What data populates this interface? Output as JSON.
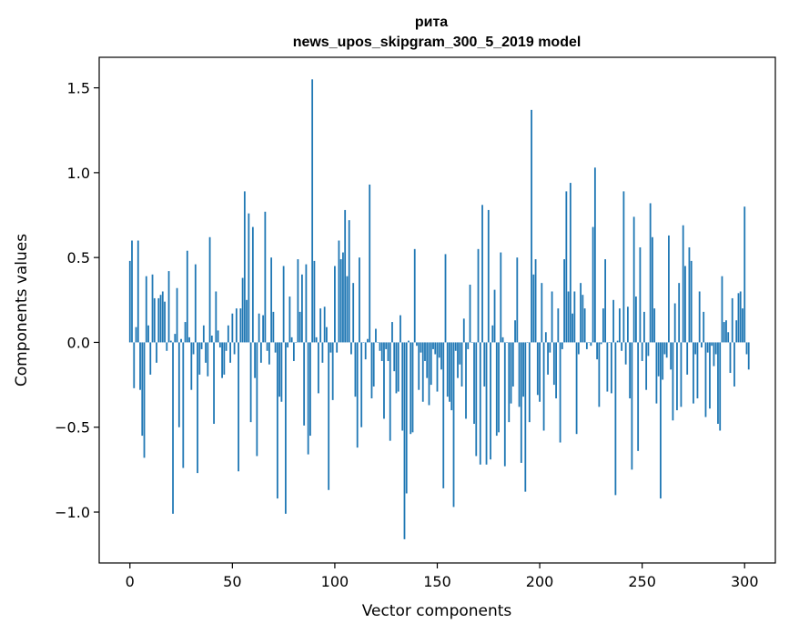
{
  "chart_data": {
    "type": "bar",
    "title_line1": "рита",
    "title_line2": "news_upos_skipgram_300_5_2019 model",
    "xlabel": "Vector components",
    "ylabel": "Components values",
    "xlim": [
      -15,
      315
    ],
    "ylim": [
      -1.3,
      1.68
    ],
    "xticks": [
      0,
      50,
      100,
      150,
      200,
      250,
      300
    ],
    "yticks": [
      1.5,
      1.0,
      0.5,
      0.0,
      -0.5,
      -1.0
    ],
    "ytick_labels": [
      "1.5",
      "1.0",
      "0.5",
      "0.0",
      "−0.5",
      "−1.0"
    ],
    "grid": false,
    "color": "#1f77b4",
    "values": [
      0.48,
      0.6,
      -0.27,
      0.09,
      0.6,
      -0.28,
      -0.55,
      -0.68,
      0.39,
      0.1,
      -0.19,
      0.4,
      0.26,
      -0.12,
      0.26,
      0.28,
      0.3,
      0.24,
      -0.05,
      0.42,
      0.01,
      -1.01,
      0.05,
      0.32,
      -0.5,
      0.02,
      -0.74,
      0.12,
      0.54,
      0.03,
      -0.28,
      -0.07,
      0.46,
      -0.77,
      -0.19,
      -0.04,
      0.1,
      -0.12,
      -0.2,
      0.62,
      0.04,
      -0.48,
      0.3,
      0.07,
      -0.03,
      -0.21,
      -0.19,
      -0.05,
      0.1,
      -0.12,
      0.17,
      -0.07,
      0.2,
      -0.76,
      0.2,
      0.38,
      0.89,
      0.25,
      0.76,
      -0.47,
      0.68,
      -0.21,
      -0.67,
      0.17,
      -0.12,
      0.16,
      0.77,
      -0.05,
      -0.13,
      0.5,
      0.18,
      -0.06,
      -0.92,
      -0.32,
      -0.35,
      0.45,
      -1.01,
      -0.03,
      0.27,
      0.03,
      -0.11,
      0.0,
      0.49,
      0.18,
      0.4,
      -0.49,
      0.46,
      -0.66,
      -0.55,
      1.55,
      0.48,
      0.03,
      -0.3,
      0.2,
      -0.12,
      0.21,
      0.09,
      -0.87,
      -0.06,
      -0.34,
      0.45,
      -0.06,
      0.6,
      0.49,
      0.53,
      0.78,
      0.39,
      0.72,
      -0.07,
      0.35,
      -0.32,
      -0.62,
      0.5,
      -0.5,
      0.0,
      -0.1,
      0.02,
      0.93,
      -0.33,
      -0.26,
      0.08,
      0.0,
      -0.05,
      -0.11,
      -0.45,
      -0.04,
      -0.11,
      -0.58,
      0.12,
      -0.17,
      -0.3,
      -0.29,
      0.16,
      -0.52,
      -1.16,
      -0.89,
      0.01,
      -0.54,
      -0.53,
      0.55,
      -0.02,
      -0.28,
      -0.06,
      -0.35,
      -0.11,
      -0.21,
      -0.37,
      -0.25,
      -0.04,
      -0.07,
      -0.29,
      -0.09,
      -0.16,
      -0.86,
      0.52,
      -0.32,
      -0.35,
      -0.4,
      -0.97,
      -0.05,
      -0.21,
      -0.13,
      -0.26,
      0.14,
      -0.45,
      -0.04,
      0.34,
      0.0,
      -0.48,
      -0.67,
      0.55,
      -0.72,
      0.81,
      -0.26,
      -0.72,
      0.78,
      -0.69,
      0.1,
      0.31,
      -0.55,
      -0.53,
      0.53,
      0.03,
      -0.73,
      0.0,
      -0.47,
      -0.36,
      -0.26,
      0.13,
      0.5,
      -0.38,
      -0.71,
      -0.32,
      -0.88,
      0.0,
      -0.47,
      1.37,
      0.4,
      0.49,
      -0.31,
      -0.35,
      0.35,
      -0.52,
      0.06,
      -0.19,
      -0.06,
      0.3,
      -0.25,
      -0.33,
      0.2,
      -0.59,
      -0.04,
      0.49,
      0.89,
      0.3,
      0.94,
      0.17,
      0.3,
      -0.54,
      -0.07,
      0.35,
      0.28,
      0.2,
      -0.04,
      0.0,
      -0.02,
      0.68,
      1.03,
      -0.1,
      -0.38,
      -0.01,
      0.2,
      0.49,
      -0.29,
      0.0,
      -0.3,
      0.25,
      -0.9,
      0.01,
      0.2,
      -0.05,
      0.89,
      -0.13,
      0.21,
      -0.33,
      -0.75,
      0.74,
      0.27,
      -0.64,
      0.56,
      -0.11,
      0.18,
      -0.28,
      -0.08,
      0.82,
      0.62,
      0.2,
      -0.36,
      -0.2,
      -0.92,
      -0.22,
      -0.07,
      -0.09,
      0.63,
      -0.16,
      -0.46,
      0.23,
      -0.4,
      0.35,
      -0.38,
      0.69,
      0.45,
      -0.19,
      0.56,
      0.48,
      -0.36,
      -0.07,
      -0.33,
      0.3,
      -0.03,
      0.18,
      -0.44,
      -0.06,
      -0.39,
      -0.02,
      -0.14,
      -0.07,
      -0.48,
      -0.52,
      0.39,
      0.12,
      0.13,
      0.06,
      -0.18,
      0.26,
      -0.26,
      0.13,
      0.29,
      0.3,
      0.2,
      0.8,
      -0.07,
      -0.16
    ]
  }
}
